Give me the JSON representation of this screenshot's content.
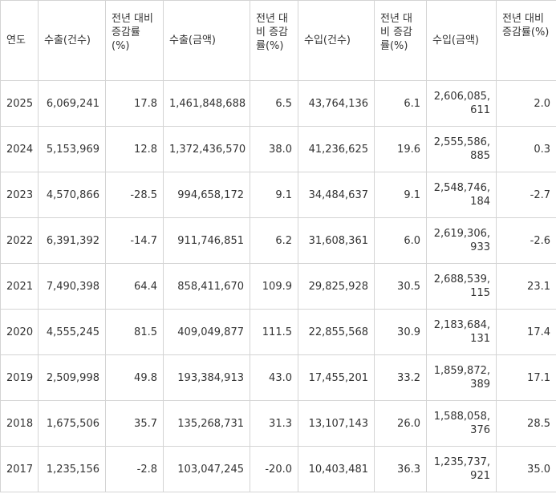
{
  "headers": {
    "year": "연도",
    "export_count": "수출(건수)",
    "export_count_change": "전년 대비 증감률(%)",
    "export_amount": "수출(금액)",
    "export_amount_change": "전년 대비 증감률(%)",
    "import_count": "수입(건수)",
    "import_count_change": "전년 대비 증감률(%)",
    "import_amount": "수입(금액)",
    "import_amount_change": "전년 대비 증감률(%)"
  },
  "rows": [
    {
      "year": "2025",
      "export_count": "6,069,241",
      "export_count_change": "17.8",
      "export_amount": "1,461,848,688",
      "export_amount_change": "6.5",
      "import_count": "43,764,136",
      "import_count_change": "6.1",
      "import_amount": "2,606,085,611",
      "import_amount_change": "2.0"
    },
    {
      "year": "2024",
      "export_count": "5,153,969",
      "export_count_change": "12.8",
      "export_amount": "1,372,436,570",
      "export_amount_change": "38.0",
      "import_count": "41,236,625",
      "import_count_change": "19.6",
      "import_amount": "2,555,586,885",
      "import_amount_change": "0.3"
    },
    {
      "year": "2023",
      "export_count": "4,570,866",
      "export_count_change": "-28.5",
      "export_amount": "994,658,172",
      "export_amount_change": "9.1",
      "import_count": "34,484,637",
      "import_count_change": "9.1",
      "import_amount": "2,548,746,184",
      "import_amount_change": "-2.7"
    },
    {
      "year": "2022",
      "export_count": "6,391,392",
      "export_count_change": "-14.7",
      "export_amount": "911,746,851",
      "export_amount_change": "6.2",
      "import_count": "31,608,361",
      "import_count_change": "6.0",
      "import_amount": "2,619,306,933",
      "import_amount_change": "-2.6"
    },
    {
      "year": "2021",
      "export_count": "7,490,398",
      "export_count_change": "64.4",
      "export_amount": "858,411,670",
      "export_amount_change": "109.9",
      "import_count": "29,825,928",
      "import_count_change": "30.5",
      "import_amount": "2,688,539,115",
      "import_amount_change": "23.1"
    },
    {
      "year": "2020",
      "export_count": "4,555,245",
      "export_count_change": "81.5",
      "export_amount": "409,049,877",
      "export_amount_change": "111.5",
      "import_count": "22,855,568",
      "import_count_change": "30.9",
      "import_amount": "2,183,684,131",
      "import_amount_change": "17.4"
    },
    {
      "year": "2019",
      "export_count": "2,509,998",
      "export_count_change": "49.8",
      "export_amount": "193,384,913",
      "export_amount_change": "43.0",
      "import_count": "17,455,201",
      "import_count_change": "33.2",
      "import_amount": "1,859,872,389",
      "import_amount_change": "17.1"
    },
    {
      "year": "2018",
      "export_count": "1,675,506",
      "export_count_change": "35.7",
      "export_amount": "135,268,731",
      "export_amount_change": "31.3",
      "import_count": "13,107,143",
      "import_count_change": "26.0",
      "import_amount": "1,588,058,376",
      "import_amount_change": "28.5"
    },
    {
      "year": "2017",
      "export_count": "1,235,156",
      "export_count_change": "-2.8",
      "export_amount": "103,047,245",
      "export_amount_change": "-20.0",
      "import_count": "10,403,481",
      "import_count_change": "36.3",
      "import_amount": "1,235,737,921",
      "import_amount_change": "35.0"
    }
  ]
}
